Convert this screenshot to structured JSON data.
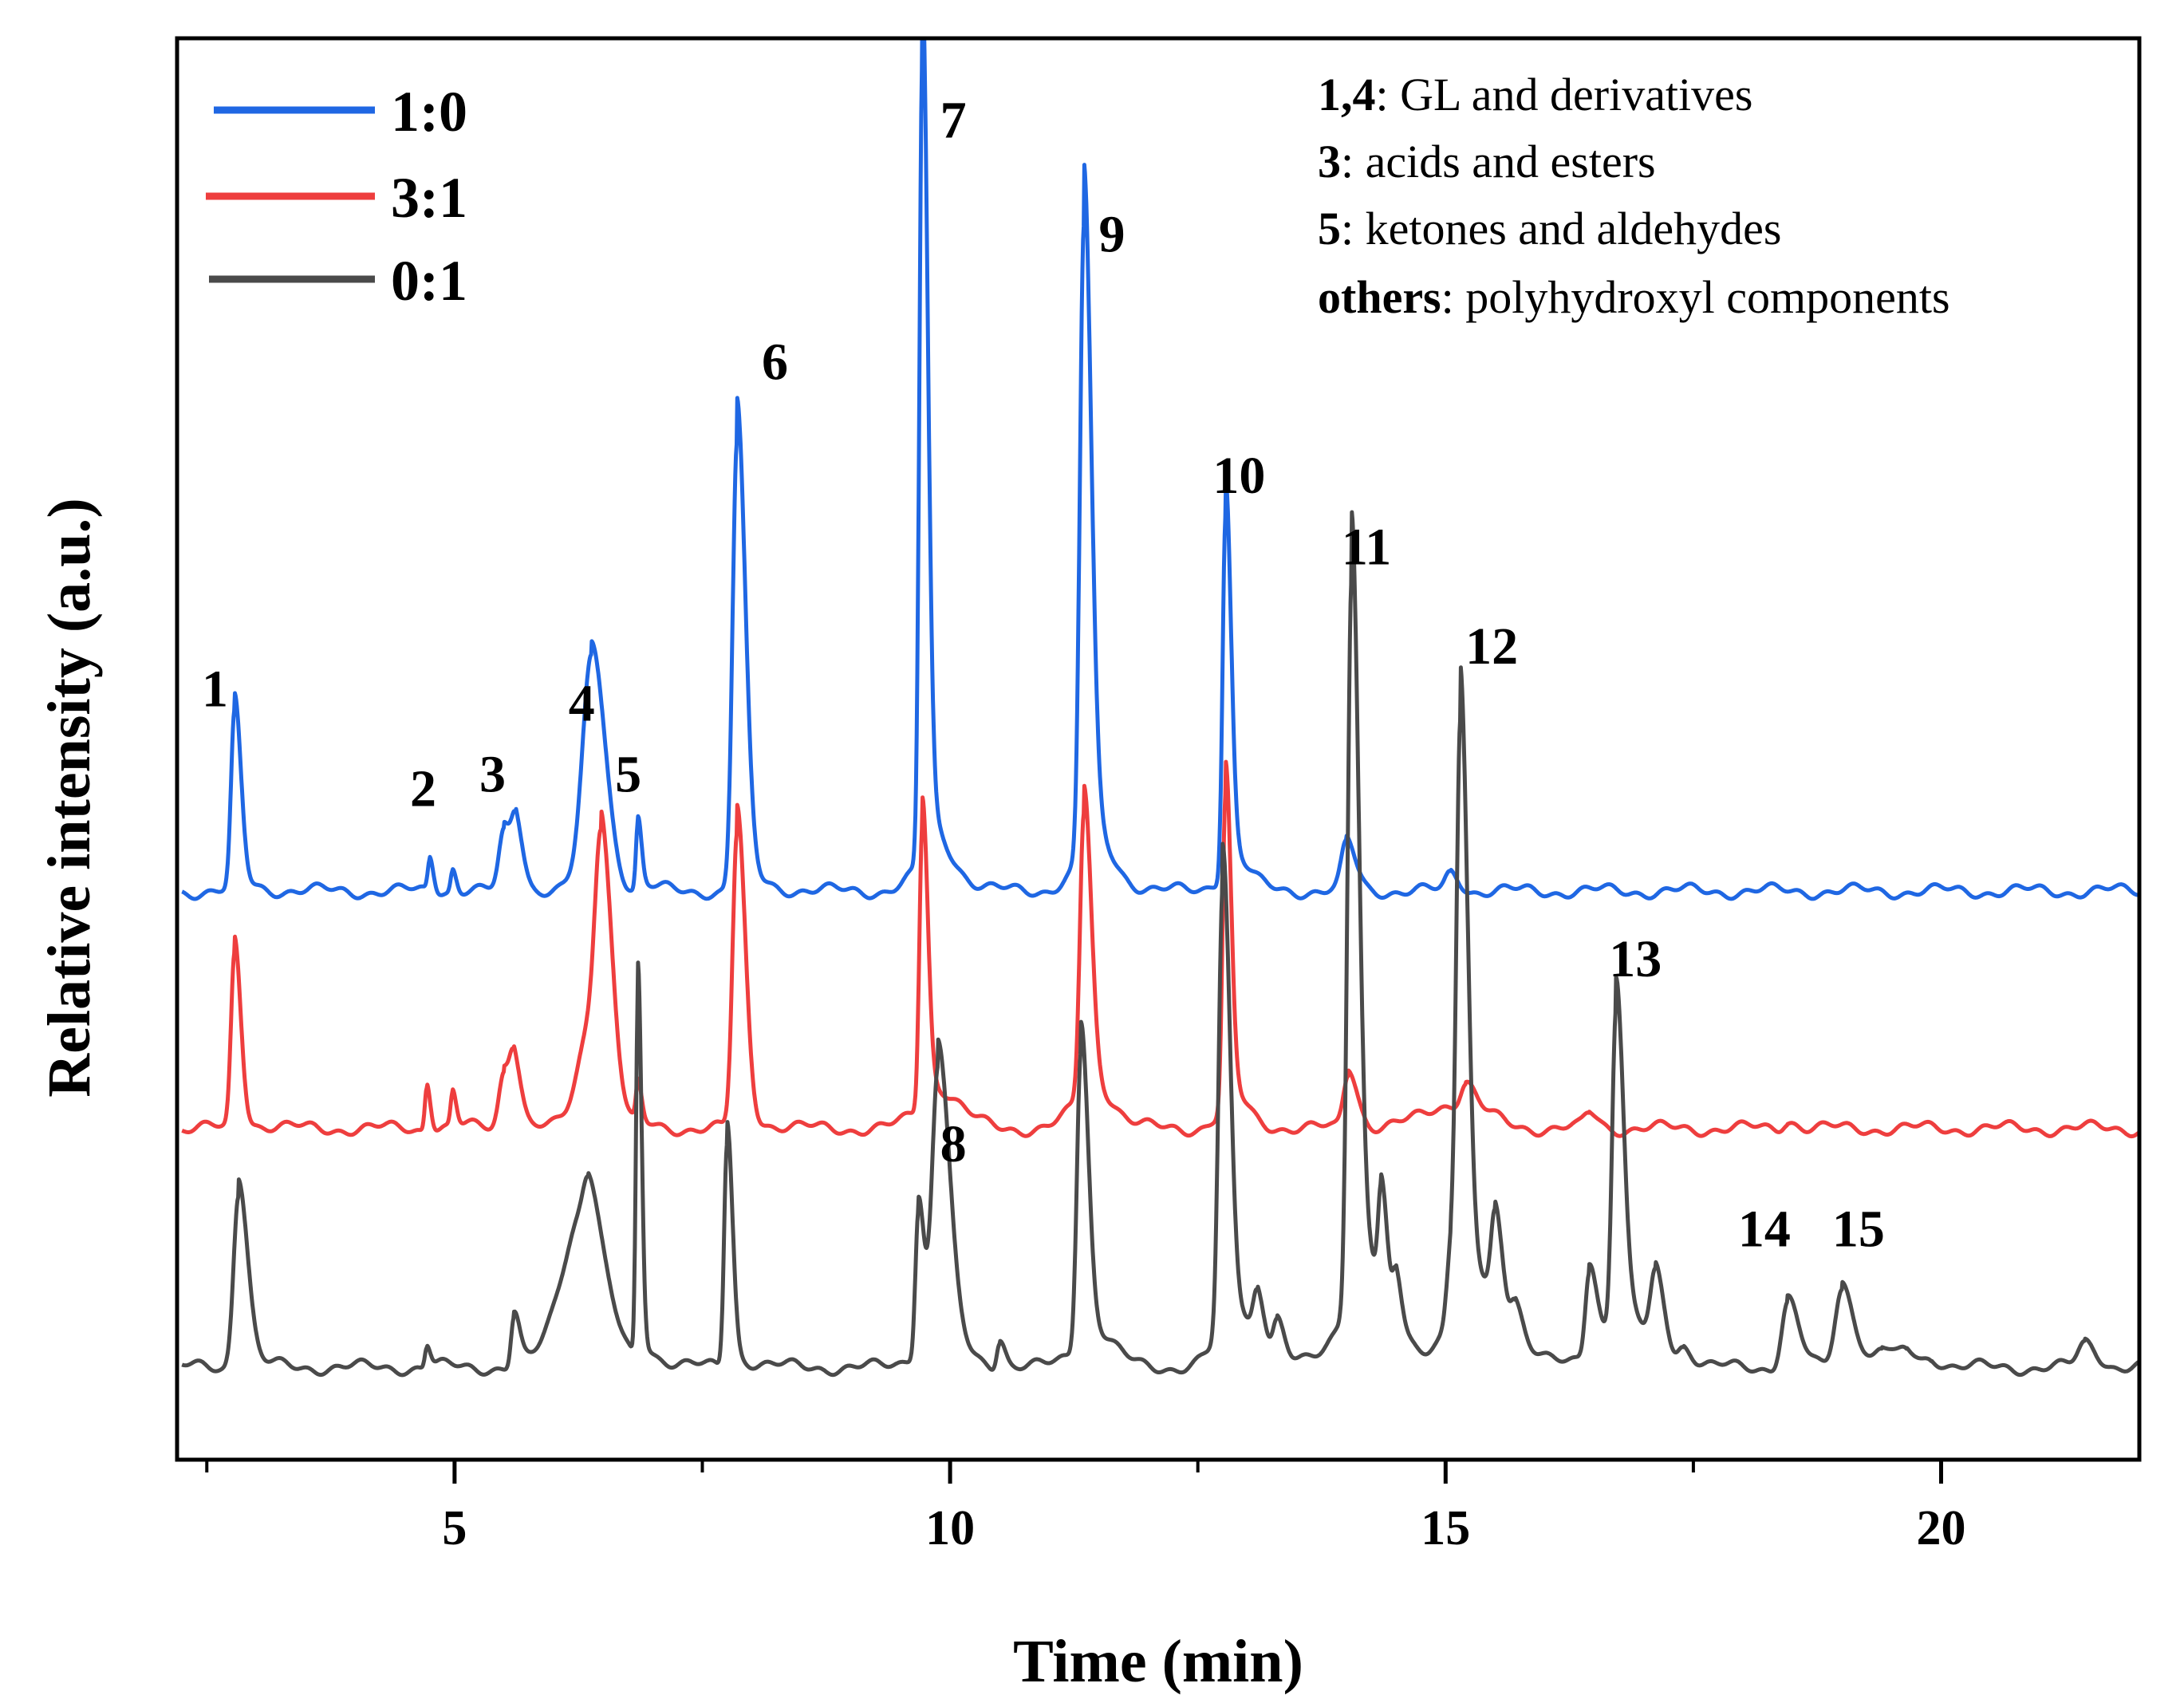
{
  "chart_data": {
    "type": "line",
    "title": "",
    "xlabel": "Time (min)",
    "ylabel": "Relative intensity (a.u.)",
    "xlim": [
      2.2,
      22
    ],
    "ylim": [
      0,
      100
    ],
    "xticks": [
      5,
      10,
      15,
      20
    ],
    "xtick_labels": [
      "5",
      "10",
      "15",
      "20"
    ],
    "minor_xticks": [
      2.5,
      7.5,
      12.5,
      17.5
    ],
    "grid": false,
    "legend_position": "top-left",
    "series": [
      {
        "name": "1:0",
        "color": "#1f67e3",
        "baseline": 40,
        "bumps": [
          [
            6.4,
            7,
            0.12
          ],
          [
            9.85,
            2.2,
            0.2
          ],
          [
            11.45,
            2.5,
            0.2
          ],
          [
            12.85,
            1.4,
            0.15
          ]
        ],
        "peaks": [
          [
            2.78,
            12.2,
            0.035
          ],
          [
            4.75,
            2.2,
            0.02
          ],
          [
            4.98,
            1.5,
            0.02
          ],
          [
            5.5,
            4.0,
            0.05
          ],
          [
            5.62,
            3.8,
            0.04
          ],
          [
            6.38,
            9.5,
            0.08
          ],
          [
            6.85,
            4.6,
            0.02
          ],
          [
            7.85,
            31.5,
            0.045
          ],
          [
            9.72,
            56.5,
            0.03
          ],
          [
            11.35,
            44.5,
            0.04
          ],
          [
            12.78,
            25.5,
            0.03
          ],
          [
            14.0,
            3.2,
            0.05
          ],
          [
            15.05,
            1.2,
            0.05
          ]
        ]
      },
      {
        "name": "3:1",
        "color": "#ee3e3e",
        "baseline": 23.3,
        "bumps": [
          [
            6.4,
            8,
            0.14
          ],
          [
            9.9,
            2.2,
            0.22
          ],
          [
            11.45,
            2.5,
            0.2
          ],
          [
            12.85,
            1.4,
            0.15
          ],
          [
            15.1,
            1.8,
            0.3
          ]
        ],
        "peaks": [
          [
            2.78,
            12.2,
            0.035
          ],
          [
            4.72,
            3.2,
            0.02
          ],
          [
            4.98,
            2.3,
            0.02
          ],
          [
            5.5,
            4.0,
            0.05
          ],
          [
            5.6,
            3.6,
            0.04
          ],
          [
            6.48,
            14.5,
            0.06
          ],
          [
            6.85,
            2.5,
            0.02
          ],
          [
            7.85,
            20.5,
            0.045
          ],
          [
            9.72,
            20.0,
            0.03
          ],
          [
            11.35,
            20.0,
            0.04
          ],
          [
            12.78,
            22.0,
            0.03
          ],
          [
            14.02,
            4.0,
            0.05
          ],
          [
            15.2,
            1.5,
            0.05
          ],
          [
            16.45,
            1.0,
            0.05
          ],
          [
            18.45,
            0.6,
            0.05
          ]
        ]
      },
      {
        "name": "0:1",
        "color": "#4a4a4a",
        "baseline": 6.5,
        "bumps": [
          [
            6.3,
            11,
            0.22
          ],
          [
            9.9,
            2.5,
            0.2
          ],
          [
            11.45,
            2.0,
            0.2
          ],
          [
            12.9,
            3.0,
            0.2
          ],
          [
            14.2,
            6.0,
            0.25
          ],
          [
            15.35,
            5.0,
            0.3
          ],
          [
            16.8,
            3.0,
            0.25
          ]
        ],
        "peaks": [
          [
            2.82,
            12.5,
            0.05
          ],
          [
            4.72,
            1.5,
            0.02
          ],
          [
            5.6,
            3.5,
            0.03
          ],
          [
            6.35,
            3.0,
            0.05
          ],
          [
            6.85,
            25.5,
            0.02
          ],
          [
            7.75,
            16.0,
            0.03
          ],
          [
            9.68,
            10.0,
            0.03
          ],
          [
            9.88,
            18.5,
            0.06
          ],
          [
            10.5,
            2.0,
            0.03
          ],
          [
            11.32,
            21.0,
            0.04
          ],
          [
            12.75,
            31.0,
            0.04
          ],
          [
            13.1,
            3.5,
            0.04
          ],
          [
            13.3,
            2.5,
            0.04
          ],
          [
            14.05,
            50.5,
            0.04
          ],
          [
            14.35,
            6.5,
            0.03
          ],
          [
            14.5,
            3.0,
            0.03
          ],
          [
            15.05,
            5.0,
            0.04
          ],
          [
            15.15,
            39.0,
            0.04
          ],
          [
            15.5,
            6.0,
            0.04
          ],
          [
            15.7,
            2.0,
            0.04
          ],
          [
            16.45,
            6.0,
            0.04
          ],
          [
            16.72,
            22.5,
            0.04
          ],
          [
            17.12,
            5.0,
            0.05
          ],
          [
            17.4,
            1.2,
            0.05
          ],
          [
            18.45,
            4.5,
            0.06
          ],
          [
            19.0,
            5.5,
            0.07
          ],
          [
            19.4,
            1.2,
            0.06
          ],
          [
            19.65,
            1.0,
            0.06
          ],
          [
            19.9,
            0.6,
            0.06
          ],
          [
            21.45,
            1.6,
            0.07
          ]
        ]
      }
    ],
    "peak_labels": [
      {
        "text": "1",
        "x": 2.45,
        "y": 53
      },
      {
        "text": "2",
        "x": 4.55,
        "y": 46
      },
      {
        "text": "3",
        "x": 5.25,
        "y": 47
      },
      {
        "text": "4",
        "x": 6.15,
        "y": 52
      },
      {
        "text": "5",
        "x": 6.62,
        "y": 47
      },
      {
        "text": "6",
        "x": 8.1,
        "y": 76
      },
      {
        "text": "7",
        "x": 9.9,
        "y": 93
      },
      {
        "text": "8",
        "x": 9.9,
        "y": 21
      },
      {
        "text": "9",
        "x": 11.5,
        "y": 85
      },
      {
        "text": "10",
        "x": 12.65,
        "y": 68
      },
      {
        "text": "11",
        "x": 13.95,
        "y": 63
      },
      {
        "text": "12",
        "x": 15.2,
        "y": 56
      },
      {
        "text": "13",
        "x": 16.65,
        "y": 34
      },
      {
        "text": "14",
        "x": 17.95,
        "y": 15
      },
      {
        "text": "15",
        "x": 18.9,
        "y": 15
      }
    ]
  },
  "legend": {
    "items": [
      {
        "label": "1:0",
        "color": "#1f67e3"
      },
      {
        "label": "3:1",
        "color": "#ee3e3e"
      },
      {
        "label": "0:1",
        "color": "#4a4a4a"
      }
    ]
  },
  "annotations": {
    "lines": [
      {
        "key": "1,4",
        "text": ": GL and derivatives"
      },
      {
        "key": "3",
        "text": ": acids and esters"
      },
      {
        "key": "5",
        "text": ": ketones and aldehydes"
      },
      {
        "key": "others",
        "text": ": polyhydroxyl components"
      }
    ]
  }
}
